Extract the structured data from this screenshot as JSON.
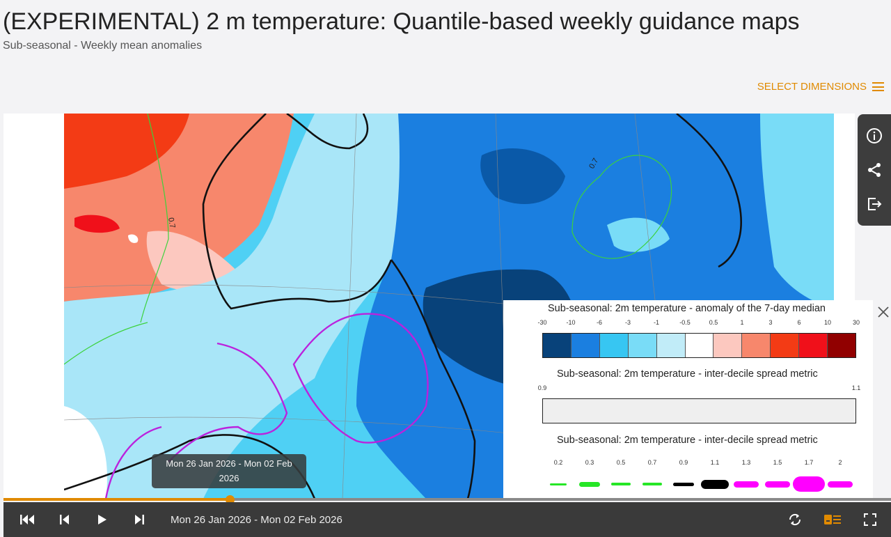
{
  "header": {
    "title": "(EXPERIMENTAL) 2 m temperature: Quantile-based weekly guidance maps",
    "subtitle": "Sub-seasonal - Weekly mean anomalies",
    "select_dimensions_label": "SELECT DIMENSIONS"
  },
  "colors": {
    "accent": "#e08a00",
    "anomaly_scale": [
      "#08427a",
      "#1b7fe0",
      "#37c6f2",
      "#79dcf7",
      "#c1ecf8",
      "#ffffff",
      "#fcc8bf",
      "#f7876c",
      "#f33b15",
      "#f0101a",
      "#910000"
    ],
    "spread_lines": [
      "#26e626",
      "#26e626",
      "#26e626",
      "#26e626",
      "#000000",
      "#000000",
      "#ff00ff",
      "#ff00ff",
      "#ff00ff",
      "#ff00ff"
    ]
  },
  "map": {
    "contour_labels": [
      "0.7",
      "0.7"
    ]
  },
  "side_toolbar": {
    "icons": [
      "info-icon",
      "share-icon",
      "export-icon"
    ]
  },
  "legend": {
    "anomaly_title": "Sub-seasonal: 2m temperature - anomaly of the 7-day median",
    "anomaly_ticks": [
      "-30",
      "-10",
      "-6",
      "-3",
      "-1",
      "-0.5",
      "0.5",
      "1",
      "3",
      "6",
      "10",
      "30"
    ],
    "spread_title": "Sub-seasonal: 2m temperature - inter-decile spread metric",
    "spread_min": "0.9",
    "spread_max": "1.1",
    "spread_lines_title": "Sub-seasonal: 2m temperature - inter-decile spread metric",
    "spread_lines_ticks": [
      "0.2",
      "0.3",
      "0.5",
      "0.7",
      "0.9",
      "1.1",
      "1.3",
      "1.5",
      "1.7",
      "2"
    ]
  },
  "timeline": {
    "tooltip_line1": "Mon 26 Jan 2026 - Mon 02 Feb",
    "tooltip_line2": "2026",
    "current_date": "Mon 26 Jan 2026 - Mon 02 Feb 2026",
    "progress": 0.255
  }
}
